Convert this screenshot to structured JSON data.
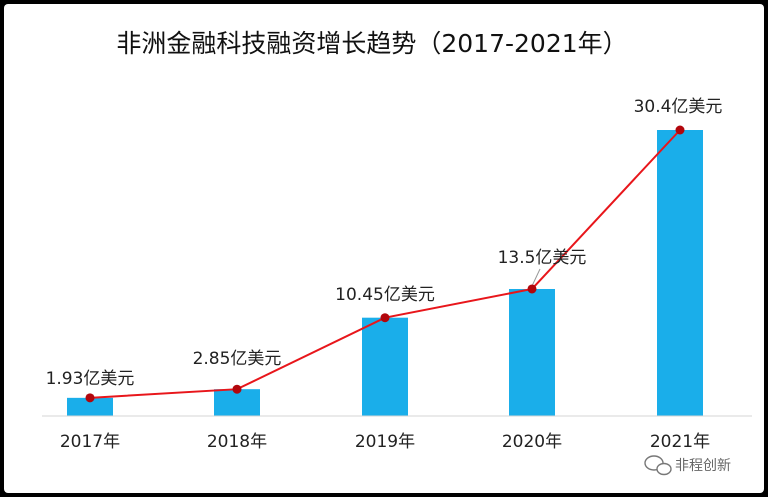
{
  "chart_data": {
    "type": "bar",
    "title": "非洲金融科技融资增长趋势（2017-2021年）",
    "categories": [
      "2017年",
      "2018年",
      "2019年",
      "2020年",
      "2021年"
    ],
    "values": [
      1.93,
      2.85,
      10.45,
      13.5,
      30.4
    ],
    "data_labels": [
      "1.93亿美元",
      "2.85亿美元",
      "10.45亿美元",
      "13.5亿美元",
      "30.4亿美元"
    ],
    "unit": "亿美元",
    "xlabel": "",
    "ylabel": "",
    "ylim": [
      0,
      35
    ],
    "grid": false,
    "legend": "none",
    "overlay": "line",
    "colors": {
      "bar": "#1aaeea",
      "line": "#e8161b",
      "marker": "#b2060c"
    }
  },
  "watermark": {
    "text": "非程创新",
    "icon": "wechat-icon"
  }
}
